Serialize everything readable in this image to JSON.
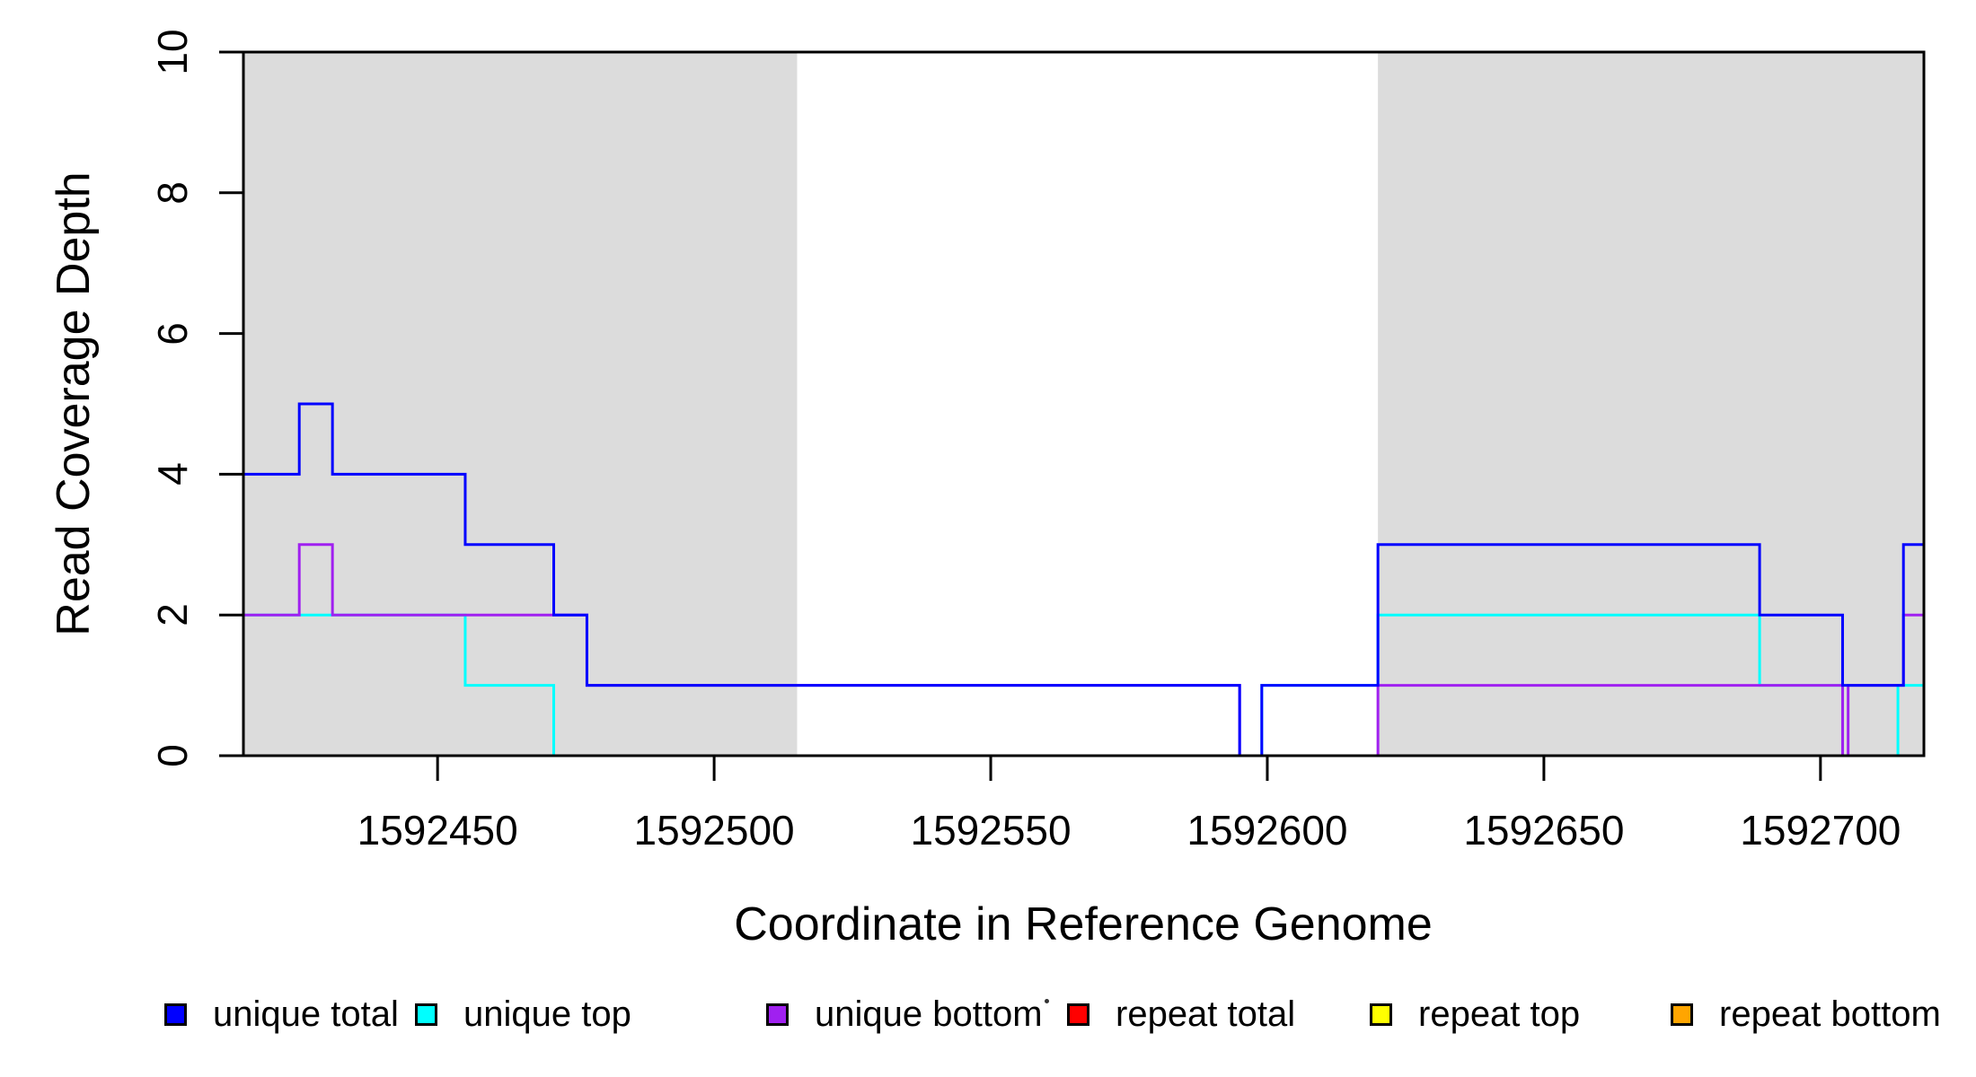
{
  "chart_data": {
    "type": "line",
    "subtype": "step-coverage-plot",
    "title": "",
    "xlabel": "Coordinate in Reference Genome",
    "ylabel": "Read Coverage Depth",
    "xlim": [
      1592414.9,
      1592718.7
    ],
    "ylim": [
      0,
      10
    ],
    "x_ticks": [
      1592450,
      1592500,
      1592550,
      1592600,
      1592650,
      1592700
    ],
    "y_ticks": [
      0,
      2,
      4,
      6,
      8,
      10
    ],
    "grid": false,
    "legend_position": "bottom",
    "shaded_regions": [
      {
        "from": 1592414.9,
        "to": 1592515,
        "color": "#DCDCDC"
      },
      {
        "from": 1592620,
        "to": 1592718.7,
        "color": "#DCDCDC"
      }
    ],
    "series": [
      {
        "name": "unique total",
        "color": "#0000FF",
        "steps": [
          [
            1592414.9,
            4
          ],
          [
            1592425,
            5
          ],
          [
            1592431,
            4
          ],
          [
            1592455,
            3
          ],
          [
            1592471,
            2
          ],
          [
            1592477,
            1
          ],
          [
            1592595,
            0
          ],
          [
            1592599,
            1
          ],
          [
            1592620,
            3
          ],
          [
            1592689,
            2
          ],
          [
            1592704,
            1
          ],
          [
            1592715,
            3
          ]
        ]
      },
      {
        "name": "unique top",
        "color": "#00FFFF",
        "steps": [
          [
            1592414.9,
            2
          ],
          [
            1592455,
            1
          ],
          [
            1592471,
            0
          ],
          [
            1592599,
            1
          ],
          [
            1592620,
            2
          ],
          [
            1592689,
            1
          ],
          [
            1592704,
            0
          ],
          [
            1592714,
            1
          ]
        ]
      },
      {
        "name": "unique bottom",
        "color": "#A020F0",
        "steps": [
          [
            1592414.9,
            2
          ],
          [
            1592425,
            3
          ],
          [
            1592431,
            2
          ],
          [
            1592477,
            1
          ],
          [
            1592595,
            0
          ],
          [
            1592620,
            1
          ],
          [
            1592704,
            0
          ],
          [
            1592705,
            1
          ],
          [
            1592715,
            2
          ]
        ]
      },
      {
        "name": "repeat total",
        "color": "#FF0000",
        "steps": [
          [
            1592414.9,
            0
          ]
        ]
      },
      {
        "name": "repeat top",
        "color": "#FFFF00",
        "steps": [
          [
            1592414.9,
            0
          ]
        ]
      },
      {
        "name": "repeat bottom",
        "color": "#FFA500",
        "steps": [
          [
            1592414.9,
            0
          ]
        ]
      }
    ],
    "draw_order": [
      "repeat top",
      "repeat total",
      "repeat bottom",
      "unique top",
      "unique bottom",
      "unique total"
    ]
  },
  "legend": {
    "entries": [
      {
        "label": "unique total",
        "color": "#0000FF"
      },
      {
        "label": "unique top",
        "color": "#00FFFF"
      },
      {
        "label": "unique bottom",
        "color": "#A020F0"
      },
      {
        "label": "repeat total",
        "color": "#FF0000"
      },
      {
        "label": "repeat top",
        "color": "#FFFF00"
      },
      {
        "label": "repeat bottom",
        "color": "#FFA500"
      }
    ],
    "stray_mark": "."
  }
}
